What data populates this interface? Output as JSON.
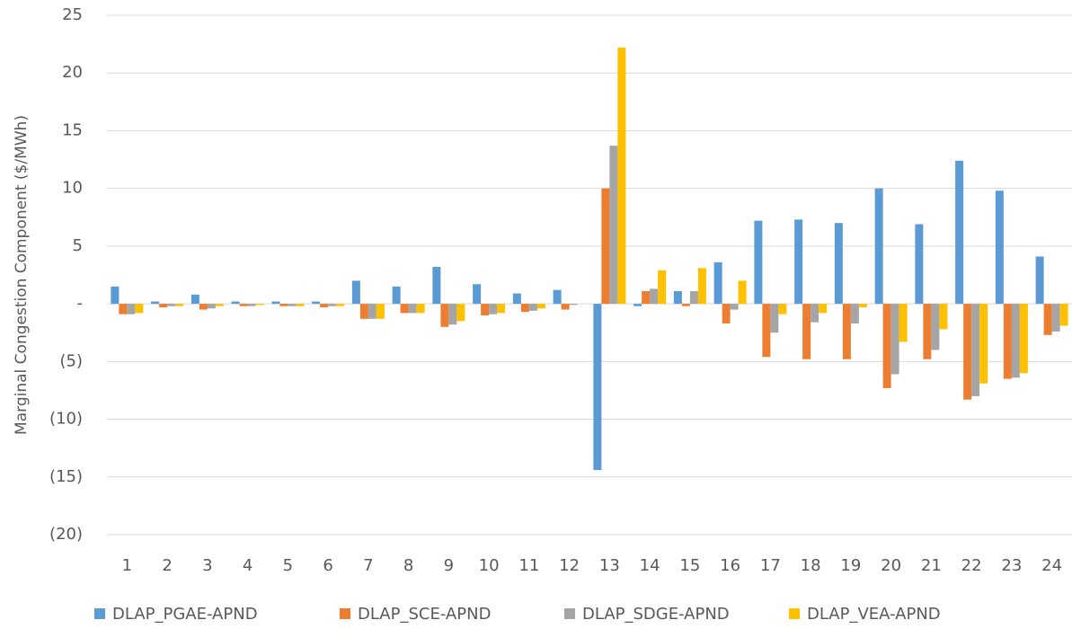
{
  "chart_data": {
    "type": "bar",
    "y_axis_label": "Marginal Congestion Component ($/MWh)",
    "categories": [
      "1",
      "2",
      "3",
      "4",
      "5",
      "6",
      "7",
      "8",
      "9",
      "10",
      "11",
      "12",
      "13",
      "14",
      "15",
      "16",
      "17",
      "18",
      "19",
      "20",
      "21",
      "22",
      "23",
      "24"
    ],
    "series": [
      {
        "name": "DLAP_PGAE-APND",
        "color": "#5b9bd5",
        "values": [
          1.5,
          0.2,
          0.8,
          0.2,
          0.2,
          0.2,
          2.0,
          1.5,
          3.2,
          1.7,
          0.9,
          1.2,
          -14.4,
          -0.2,
          1.1,
          3.6,
          7.2,
          7.3,
          7.0,
          10.0,
          6.9,
          12.4,
          9.8,
          4.1
        ]
      },
      {
        "name": "DLAP_SCE-APND",
        "color": "#ed7d31",
        "values": [
          -0.9,
          -0.3,
          -0.5,
          -0.2,
          -0.2,
          -0.3,
          -1.3,
          -0.8,
          -2.0,
          -1.0,
          -0.7,
          -0.5,
          10.0,
          1.1,
          -0.2,
          -1.7,
          -4.6,
          -4.8,
          -4.8,
          -7.3,
          -4.8,
          -8.3,
          -6.5,
          -2.7
        ]
      },
      {
        "name": "DLAP_SDGE-APND",
        "color": "#a5a5a5",
        "values": [
          -0.9,
          -0.2,
          -0.4,
          -0.2,
          -0.2,
          -0.2,
          -1.3,
          -0.8,
          -1.8,
          -0.9,
          -0.6,
          -0.1,
          13.7,
          1.3,
          1.1,
          -0.5,
          -2.5,
          -1.6,
          -1.7,
          -6.1,
          -4.0,
          -8.0,
          -6.4,
          -2.4
        ]
      },
      {
        "name": "DLAP_VEA-APND",
        "color": "#ffc000",
        "values": [
          -0.8,
          -0.2,
          -0.2,
          -0.1,
          -0.2,
          -0.2,
          -1.3,
          -0.8,
          -1.5,
          -0.8,
          -0.4,
          0,
          22.2,
          2.9,
          3.1,
          2.0,
          -0.9,
          -0.8,
          -0.3,
          -3.3,
          -2.2,
          -6.9,
          -6.0,
          -1.9
        ]
      }
    ],
    "ylim": [
      -20,
      25
    ],
    "yticks": [
      25,
      20,
      15,
      10,
      5,
      {
        "value": 0,
        "label": "-"
      },
      {
        "value": -5,
        "label": "(5)"
      },
      {
        "value": -10,
        "label": "(10)"
      },
      {
        "value": -15,
        "label": "(15)"
      },
      {
        "value": -20,
        "label": "(20)"
      }
    ],
    "grid": true,
    "legend": "bottom"
  }
}
